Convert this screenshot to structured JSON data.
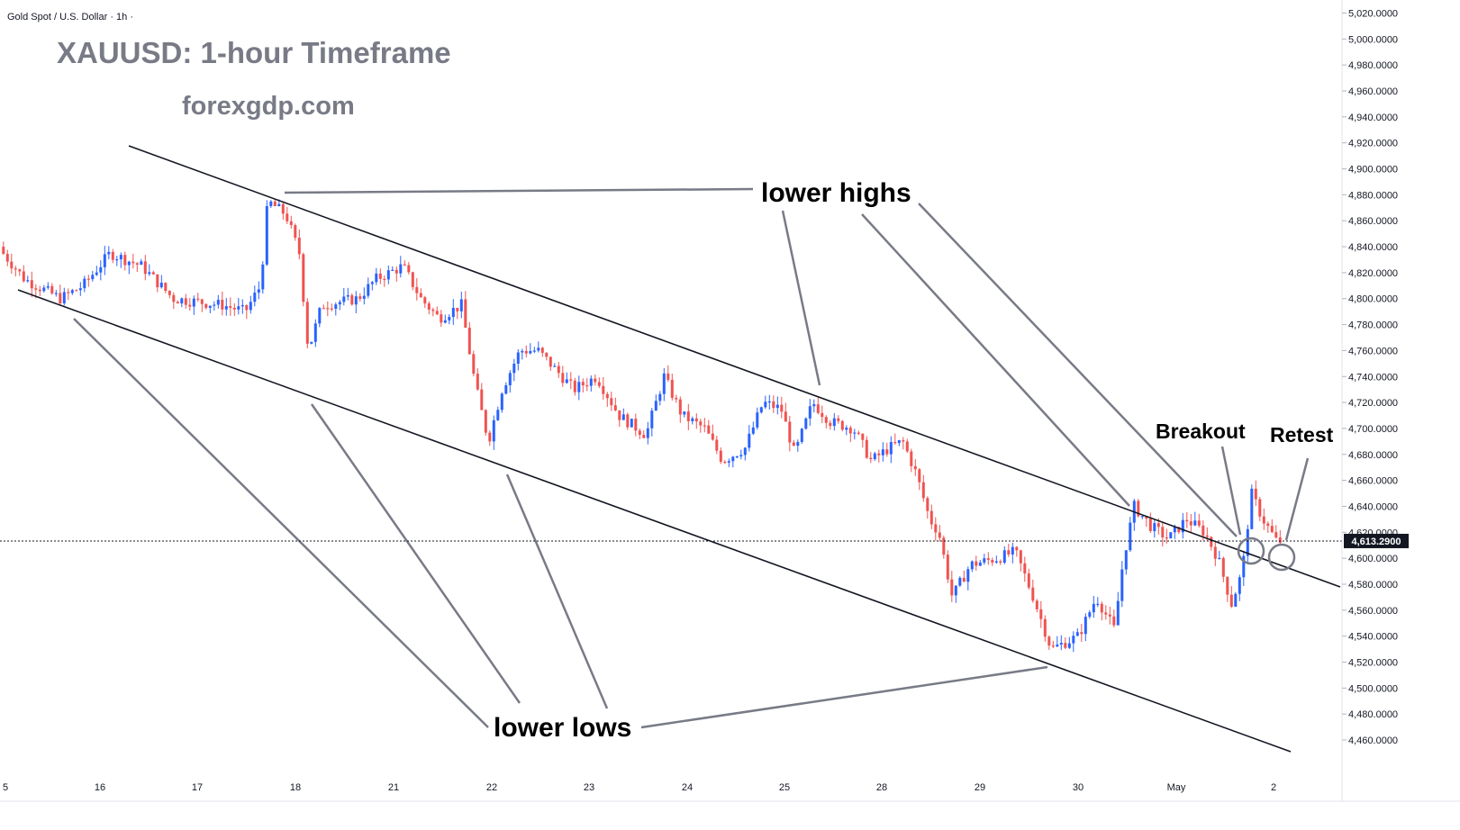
{
  "header": {
    "symbol_label": "Gold Spot / U.S. Dollar · 1h ·",
    "title": "XAUUSD: 1-hour Timeframe",
    "site": "forexgdp.com"
  },
  "annotations": {
    "lower_highs": "lower highs",
    "lower_lows": "lower lows",
    "breakout": "Breakout",
    "retest": "Retest"
  },
  "current_price_label": "4,613.2900",
  "colors": {
    "up": "#2962ff",
    "down": "#ef5350",
    "trendline": "#131722",
    "pointer": "#787b86",
    "price_tag": "#131722"
  },
  "chart_data": {
    "type": "candlestick",
    "symbol": "XAUUSD",
    "timeframe": "1h",
    "ylim": [
      4450,
      5025
    ],
    "y_ticks": [
      5020,
      5000,
      4980,
      4960,
      4940,
      4920,
      4900,
      4880,
      4860,
      4840,
      4820,
      4800,
      4780,
      4760,
      4740,
      4720,
      4700,
      4680,
      4660,
      4640,
      4620,
      4600,
      4580,
      4560,
      4540,
      4520,
      4500,
      4480,
      4460
    ],
    "y_tick_labels": [
      "5,020.0000",
      "5,000.0000",
      "4,980.0000",
      "4,960.0000",
      "4,940.0000",
      "4,920.0000",
      "4,900.0000",
      "4,880.0000",
      "4,860.0000",
      "4,840.0000",
      "4,820.0000",
      "4,800.0000",
      "4,780.0000",
      "4,760.0000",
      "4,740.0000",
      "4,720.0000",
      "4,700.0000",
      "4,680.0000",
      "4,660.0000",
      "4,640.0000",
      "4,620.0000",
      "4,600.0000",
      "4,580.0000",
      "4,560.0000",
      "4,540.0000",
      "4,520.0000",
      "4,500.0000",
      "4,480.0000",
      "4,460.0000"
    ],
    "x_labels": [
      "5",
      "16",
      "17",
      "18",
      "21",
      "22",
      "23",
      "24",
      "25",
      "28",
      "29",
      "30",
      "May",
      "2"
    ],
    "current_price": 4613.29,
    "price_path": [
      {
        "t": 0,
        "p": 4840
      },
      {
        "t": 30,
        "p": 4815
      },
      {
        "t": 70,
        "p": 4800
      },
      {
        "t": 95,
        "p": 4810
      },
      {
        "t": 125,
        "p": 4835
      },
      {
        "t": 160,
        "p": 4825
      },
      {
        "t": 195,
        "p": 4800
      },
      {
        "t": 250,
        "p": 4795
      },
      {
        "t": 275,
        "p": 4790
      },
      {
        "t": 292,
        "p": 4810
      },
      {
        "t": 300,
        "p": 4875
      },
      {
        "t": 320,
        "p": 4865
      },
      {
        "t": 335,
        "p": 4835
      },
      {
        "t": 345,
        "p": 4760
      },
      {
        "t": 360,
        "p": 4795
      },
      {
        "t": 400,
        "p": 4800
      },
      {
        "t": 420,
        "p": 4815
      },
      {
        "t": 450,
        "p": 4825
      },
      {
        "t": 470,
        "p": 4800
      },
      {
        "t": 490,
        "p": 4785
      },
      {
        "t": 515,
        "p": 4795
      },
      {
        "t": 530,
        "p": 4735
      },
      {
        "t": 545,
        "p": 4690
      },
      {
        "t": 560,
        "p": 4730
      },
      {
        "t": 580,
        "p": 4760
      },
      {
        "t": 600,
        "p": 4760
      },
      {
        "t": 620,
        "p": 4745
      },
      {
        "t": 640,
        "p": 4730
      },
      {
        "t": 665,
        "p": 4740
      },
      {
        "t": 690,
        "p": 4710
      },
      {
        "t": 720,
        "p": 4695
      },
      {
        "t": 740,
        "p": 4740
      },
      {
        "t": 760,
        "p": 4710
      },
      {
        "t": 785,
        "p": 4700
      },
      {
        "t": 805,
        "p": 4675
      },
      {
        "t": 830,
        "p": 4685
      },
      {
        "t": 850,
        "p": 4720
      },
      {
        "t": 870,
        "p": 4715
      },
      {
        "t": 885,
        "p": 4680
      },
      {
        "t": 905,
        "p": 4720
      },
      {
        "t": 925,
        "p": 4705
      },
      {
        "t": 950,
        "p": 4700
      },
      {
        "t": 970,
        "p": 4675
      },
      {
        "t": 990,
        "p": 4685
      },
      {
        "t": 1005,
        "p": 4690
      },
      {
        "t": 1020,
        "p": 4665
      },
      {
        "t": 1035,
        "p": 4630
      },
      {
        "t": 1045,
        "p": 4620
      },
      {
        "t": 1060,
        "p": 4570
      },
      {
        "t": 1080,
        "p": 4595
      },
      {
        "t": 1110,
        "p": 4600
      },
      {
        "t": 1130,
        "p": 4605
      },
      {
        "t": 1150,
        "p": 4570
      },
      {
        "t": 1170,
        "p": 4530
      },
      {
        "t": 1185,
        "p": 4535
      },
      {
        "t": 1200,
        "p": 4540
      },
      {
        "t": 1220,
        "p": 4570
      },
      {
        "t": 1240,
        "p": 4545
      },
      {
        "t": 1250,
        "p": 4600
      },
      {
        "t": 1262,
        "p": 4640
      },
      {
        "t": 1280,
        "p": 4625
      },
      {
        "t": 1300,
        "p": 4615
      },
      {
        "t": 1320,
        "p": 4630
      },
      {
        "t": 1340,
        "p": 4620
      },
      {
        "t": 1355,
        "p": 4600
      },
      {
        "t": 1370,
        "p": 4565
      },
      {
        "t": 1382,
        "p": 4590
      },
      {
        "t": 1392,
        "p": 4650
      },
      {
        "t": 1405,
        "p": 4630
      },
      {
        "t": 1420,
        "p": 4613
      }
    ]
  }
}
